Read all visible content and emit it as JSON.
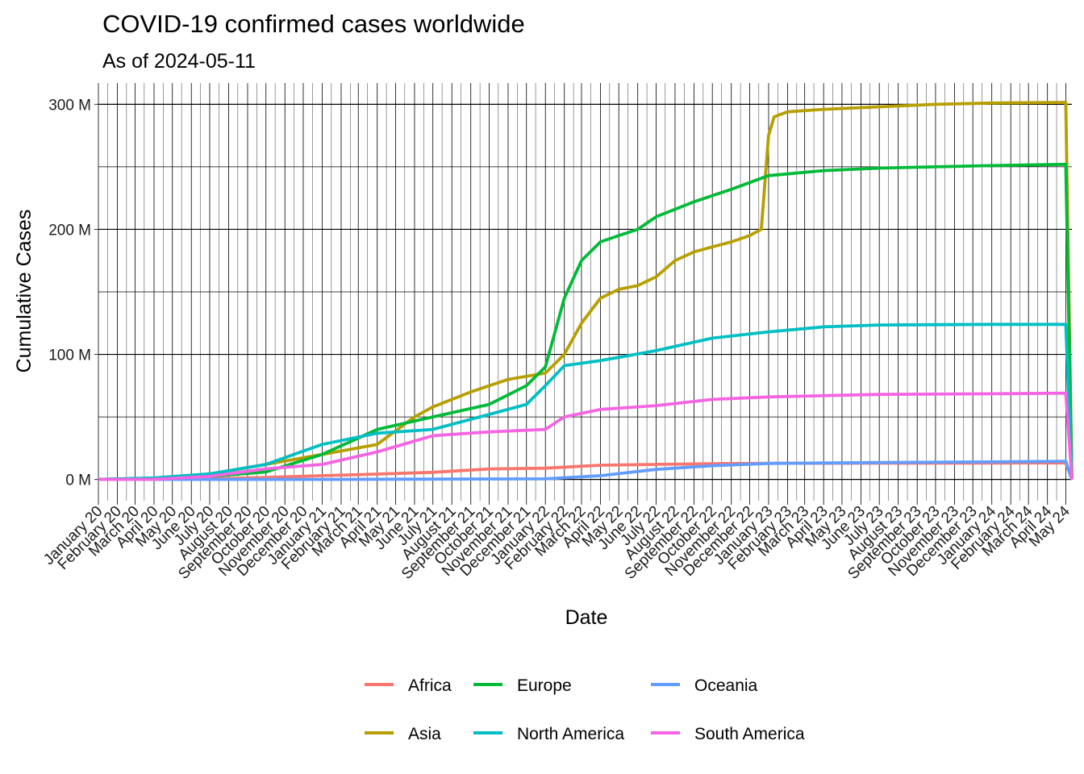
{
  "chart_data": {
    "type": "line",
    "title": "COVID-19 confirmed cases worldwide",
    "subtitle": "As of 2024-05-11",
    "xlabel": "Date",
    "ylabel": "Cumulative Cases",
    "xlim": [
      "2020-01-01",
      "2024-05-11"
    ],
    "ylim": [
      -17,
      317
    ],
    "yticks": [
      0,
      100,
      200,
      300
    ],
    "ytick_labels": [
      "0 M",
      "100 M",
      "200 M",
      "300 M"
    ],
    "xtick_labels": [
      "January 20",
      "February 20",
      "March 20",
      "April 20",
      "May 20",
      "June 20",
      "July 20",
      "August 20",
      "September 20",
      "October 20",
      "November 20",
      "December 20",
      "January 21",
      "February 21",
      "March 21",
      "April 21",
      "May 21",
      "June 21",
      "July 21",
      "August 21",
      "September 21",
      "October 21",
      "November 21",
      "December 21",
      "January 22",
      "February 22",
      "March 22",
      "April 22",
      "May 22",
      "June 22",
      "July 22",
      "August 22",
      "September 22",
      "October 22",
      "November 22",
      "December 22",
      "January 23",
      "February 23",
      "March 23",
      "April 23",
      "May 23",
      "June 23",
      "July 23",
      "August 23",
      "September 23",
      "October 23",
      "November 23",
      "December 23",
      "January 24",
      "February 24",
      "March 24",
      "April 24",
      "May 24"
    ],
    "grid": true,
    "legend_position": "bottom",
    "series": [
      {
        "name": "Africa",
        "color": "#F8766D",
        "x": [
          "2020-01-01",
          "2020-04-01",
          "2020-07-01",
          "2020-10-01",
          "2021-01-01",
          "2021-04-01",
          "2021-07-01",
          "2021-10-01",
          "2022-01-01",
          "2022-04-01",
          "2022-07-01",
          "2022-10-01",
          "2023-01-01",
          "2023-07-01",
          "2024-01-01",
          "2024-05-01",
          "2024-05-11"
        ],
        "values": [
          0,
          0.02,
          0.5,
          1.6,
          3.0,
          4.3,
          5.7,
          8.4,
          9.0,
          11.4,
          12.0,
          12.6,
          12.9,
          13.0,
          13.1,
          13.2,
          0
        ]
      },
      {
        "name": "Asia",
        "color": "#B79F00",
        "x": [
          "2020-01-01",
          "2020-04-01",
          "2020-07-01",
          "2020-10-01",
          "2021-01-01",
          "2021-04-01",
          "2021-06-01",
          "2021-07-01",
          "2021-09-01",
          "2021-11-01",
          "2022-01-01",
          "2022-02-01",
          "2022-03-01",
          "2022-04-01",
          "2022-05-01",
          "2022-06-01",
          "2022-07-01",
          "2022-08-01",
          "2022-09-01",
          "2022-10-01",
          "2022-11-01",
          "2022-12-01",
          "2022-12-20",
          "2022-12-28",
          "2023-01-01",
          "2023-01-10",
          "2023-02-01",
          "2023-04-01",
          "2023-07-01",
          "2023-10-01",
          "2024-01-01",
          "2024-05-01",
          "2024-05-11"
        ],
        "values": [
          0.1,
          0.5,
          4.0,
          12.0,
          20.0,
          28.0,
          50.0,
          58.0,
          70.0,
          80.0,
          85.0,
          100.0,
          125.0,
          145.0,
          152.0,
          155.0,
          162.0,
          175.0,
          182.0,
          186.0,
          190.0,
          195.0,
          200.0,
          250.0,
          275.0,
          290.0,
          294.0,
          296.0,
          298.0,
          300.0,
          301.0,
          301.5,
          0
        ]
      },
      {
        "name": "Europe",
        "color": "#00BA38",
        "x": [
          "2020-01-01",
          "2020-04-01",
          "2020-07-01",
          "2020-10-01",
          "2021-01-01",
          "2021-04-01",
          "2021-07-01",
          "2021-10-01",
          "2021-12-01",
          "2022-01-01",
          "2022-02-01",
          "2022-03-01",
          "2022-04-01",
          "2022-05-01",
          "2022-06-01",
          "2022-07-01",
          "2022-09-01",
          "2022-11-01",
          "2023-01-01",
          "2023-04-01",
          "2023-07-01",
          "2023-10-01",
          "2024-01-01",
          "2024-05-01",
          "2024-05-11"
        ],
        "values": [
          0.1,
          1.0,
          2.5,
          6.0,
          20.0,
          40.0,
          50.0,
          60.0,
          75.0,
          90.0,
          145.0,
          175.0,
          190.0,
          195.0,
          200.0,
          210.0,
          222.0,
          232.0,
          243.0,
          247.0,
          249.0,
          250.0,
          251.0,
          252.0,
          0
        ]
      },
      {
        "name": "North America",
        "color": "#00BFC4",
        "x": [
          "2020-01-01",
          "2020-04-01",
          "2020-07-01",
          "2020-10-01",
          "2021-01-01",
          "2021-04-01",
          "2021-07-01",
          "2021-10-01",
          "2021-12-01",
          "2022-01-01",
          "2022-02-01",
          "2022-04-01",
          "2022-07-01",
          "2022-10-01",
          "2023-01-01",
          "2023-04-01",
          "2023-07-01",
          "2024-01-01",
          "2024-05-01",
          "2024-05-11"
        ],
        "values": [
          0,
          1.2,
          4.5,
          12.0,
          28.0,
          37.0,
          40.0,
          52.0,
          60.0,
          75.0,
          91.0,
          95.0,
          103.0,
          113.0,
          118.0,
          122.0,
          123.5,
          124.0,
          124.0,
          0
        ]
      },
      {
        "name": "Oceania",
        "color": "#619CFF",
        "x": [
          "2020-01-01",
          "2021-01-01",
          "2022-01-01",
          "2022-04-01",
          "2022-07-01",
          "2022-10-01",
          "2023-01-01",
          "2023-07-01",
          "2024-01-01",
          "2024-05-01",
          "2024-05-11"
        ],
        "values": [
          0,
          0.05,
          0.5,
          3.0,
          8.0,
          11.0,
          12.8,
          13.5,
          14.0,
          14.5,
          0
        ]
      },
      {
        "name": "South America",
        "color": "#F564E3",
        "x": [
          "2020-01-01",
          "2020-04-01",
          "2020-07-01",
          "2020-10-01",
          "2021-01-01",
          "2021-04-01",
          "2021-07-01",
          "2021-10-01",
          "2022-01-01",
          "2022-02-01",
          "2022-04-01",
          "2022-07-01",
          "2022-10-01",
          "2023-01-01",
          "2023-07-01",
          "2024-01-01",
          "2024-05-01",
          "2024-05-11"
        ],
        "values": [
          0,
          0.1,
          2.5,
          8.5,
          12.0,
          22.0,
          35.0,
          38.0,
          40.0,
          50.0,
          56.0,
          59.0,
          64.0,
          66.0,
          68.0,
          68.5,
          69.0,
          0
        ]
      }
    ]
  }
}
